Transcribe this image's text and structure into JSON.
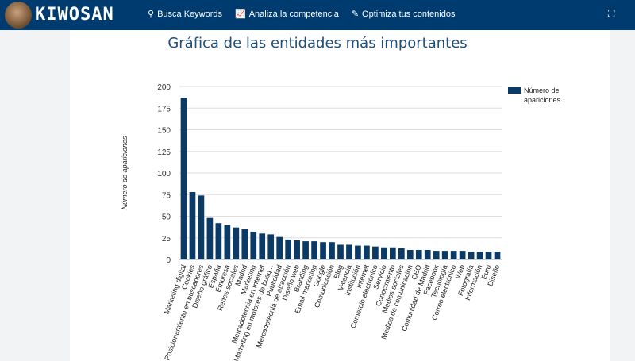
{
  "header": {
    "brand": "KIWOSAN",
    "links": [
      {
        "icon": "search-icon",
        "label": "Busca Keywords"
      },
      {
        "icon": "chart-line-icon",
        "label": "Analiza la competencia"
      },
      {
        "icon": "edit-document-icon",
        "label": "Optimiza tus contenidos"
      }
    ],
    "fullscreen_icon": "fullscreen-icon"
  },
  "page_title": "Gráfica de las entidades más importantes",
  "chart_data": {
    "type": "bar",
    "title": "",
    "xlabel": "",
    "ylabel": "Número de apariciones",
    "ylim": [
      0,
      200
    ],
    "yticks": [
      0,
      25,
      50,
      75,
      100,
      125,
      150,
      175,
      200
    ],
    "grid": true,
    "legend": "right",
    "color": "#0b3a66",
    "series": [
      {
        "name": "Número de apariciones",
        "values": [
          187,
          78,
          74,
          48,
          42,
          40,
          37,
          35,
          32,
          30,
          29,
          26,
          23,
          22,
          21,
          21,
          20,
          20,
          17,
          17,
          16,
          16,
          15,
          14,
          14,
          13,
          11,
          11,
          11,
          10,
          10,
          10,
          10,
          9,
          9,
          9,
          9
        ]
      }
    ],
    "categories": [
      "Marketing digital",
      "Cookies",
      "Posicionamiento en buscadores",
      "Diseño gráfico",
      "España",
      "Empresa",
      "Redes sociales",
      "Madrid",
      "Marketing",
      "Mercadotecnia en Internet",
      "Marketing en motores de busq...",
      "Publicidad",
      "Mercadotecnia de atracción",
      "Diseño web",
      "Branding",
      "Email marketing",
      "Google",
      "Comunicación",
      "Blog",
      "Valencia",
      "Institución",
      "Internet",
      "Comercio electrónico",
      "Servicio",
      "Conocimiento",
      "Medios sociales",
      "Medios de comunicación",
      "CEO",
      "Comunidad de Madrid",
      "Facebook",
      "Tecnología",
      "Correo electrónico",
      "Web",
      "Fotografía",
      "Información",
      "Euro",
      "Diseño"
    ]
  }
}
